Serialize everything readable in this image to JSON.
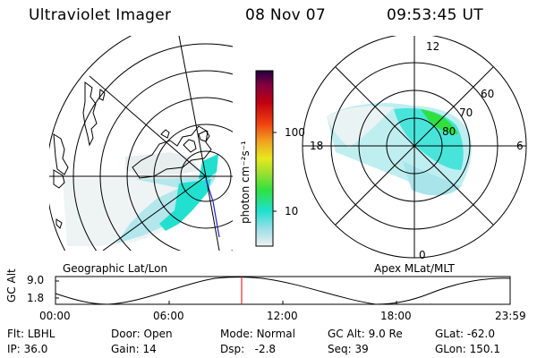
{
  "header": {
    "instrument": "Ultraviolet Imager",
    "date": "08 Nov 07",
    "time": "09:53:45 UT"
  },
  "geo_panel": {
    "label": "Geographic Lat/Lon"
  },
  "apex_panel": {
    "label": "Apex MLat/MLT",
    "mlt_labels": [
      "12",
      "18",
      "6",
      "0"
    ],
    "mlat_labels": [
      "60",
      "70",
      "80"
    ]
  },
  "colorbar": {
    "unit_label": "photon cm⁻²s⁻¹",
    "tick_labels": [
      "100",
      "10"
    ],
    "scale": "log",
    "colors": [
      "#f0f0f0",
      "#9adfe6",
      "#20e0d0",
      "#30e040",
      "#a0e030",
      "#e8e820",
      "#f0a020",
      "#f04010",
      "#c00010",
      "#800040",
      "#200040"
    ]
  },
  "altitude_plot": {
    "ylabel": "GC Alt",
    "y_ticks": [
      "9.0",
      "1.8"
    ],
    "x_ticks": [
      "00:00",
      "06:00",
      "12:00",
      "18:00",
      "23:59"
    ],
    "current_time_marker": "09:53"
  },
  "info": {
    "row1": [
      {
        "key": "Flt:",
        "value": "LBHL"
      },
      {
        "key": "Door:",
        "value": "Open"
      },
      {
        "key": "Mode:",
        "value": "Normal"
      },
      {
        "key": "GC Alt:",
        "value": "9.0 Re"
      },
      {
        "key": "GLat:",
        "value": "-62.0"
      }
    ],
    "row2": [
      {
        "key": "IP:",
        "value": "36.0"
      },
      {
        "key": "Gain:",
        "value": "14"
      },
      {
        "key": "Dsp:",
        "value": "-2.8"
      },
      {
        "key": "Seq:",
        "value": "39"
      },
      {
        "key": "GLon:",
        "value": "150.1"
      }
    ]
  }
}
